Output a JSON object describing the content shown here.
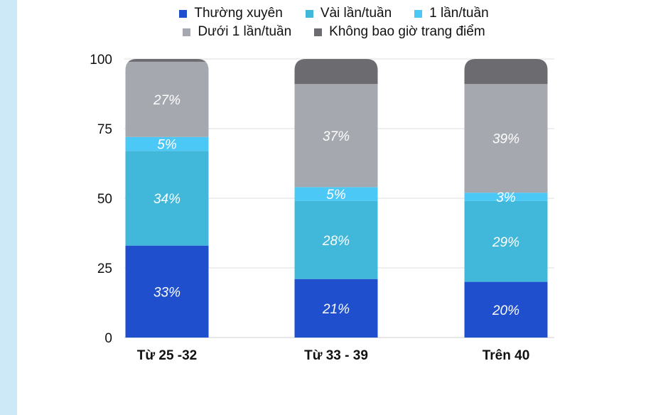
{
  "chart_data": {
    "type": "bar",
    "stacked": true,
    "categories": [
      "Từ 25 -32",
      "Từ 33 - 39",
      "Trên 40"
    ],
    "series": [
      {
        "name": "Thường xuyên",
        "color": "#1f4fcc",
        "values": [
          33,
          21,
          20
        ],
        "labels": [
          "33%",
          "21%",
          "20%"
        ]
      },
      {
        "name": "Vài lần/tuần",
        "color": "#41b8d9",
        "values": [
          34,
          28,
          29
        ],
        "labels": [
          "34%",
          "28%",
          "29%"
        ]
      },
      {
        "name": "1 lần/tuần",
        "color": "#4cc8f7",
        "values": [
          5,
          5,
          3
        ],
        "labels": [
          "5%",
          "5%",
          "3%"
        ]
      },
      {
        "name": "Dưới 1 lần/tuần",
        "color": "#a5a8ae",
        "values": [
          27,
          37,
          39
        ],
        "labels": [
          "27%",
          "37%",
          "39%"
        ]
      },
      {
        "name": "Không bao giờ trang điểm",
        "color": "#6b6b70",
        "values": [
          1,
          9,
          9
        ],
        "labels": [
          "",
          "",
          ""
        ]
      }
    ],
    "yticks": [
      "0",
      "25",
      "50",
      "75",
      "100"
    ],
    "ylim": [
      0,
      100
    ],
    "grid": true,
    "legend_position": "top"
  }
}
